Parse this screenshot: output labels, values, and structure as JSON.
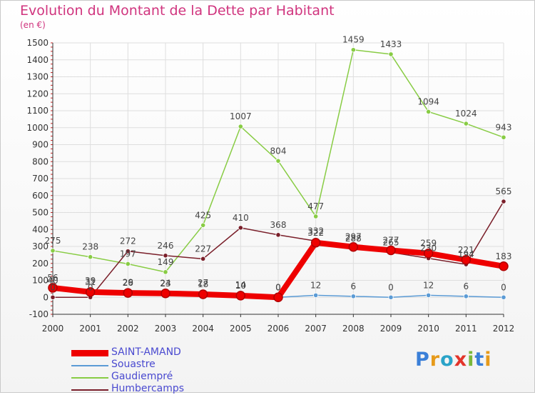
{
  "title": "Evolution du Montant de la Dette par Habitant",
  "unit": "(en €)",
  "logo": "Proxiti",
  "chart_data": {
    "type": "line",
    "x": [
      "2000",
      "2001",
      "2002",
      "2003",
      "2004",
      "2005",
      "2006",
      "2007",
      "2008",
      "2009",
      "2010",
      "2011",
      "2012"
    ],
    "ylim": [
      -100,
      1500
    ],
    "yticks": [
      -100,
      0,
      100,
      200,
      300,
      400,
      500,
      600,
      700,
      800,
      900,
      1000,
      1100,
      1200,
      1300,
      1400,
      1500
    ],
    "series": [
      {
        "name": "SAINT-AMAND",
        "color": "#ee0000",
        "values": [
          56,
          31,
          26,
          23,
          18,
          10,
          0,
          322,
          297,
          277,
          259,
          221,
          183
        ],
        "labels": [
          "56",
          "31",
          "26",
          "23",
          "18",
          "10",
          "0",
          "322",
          "297",
          "277",
          "259",
          "221",
          "183"
        ]
      },
      {
        "name": "Souastre",
        "color": "#5b9bd5",
        "values": [
          40,
          39,
          29,
          24,
          27,
          14,
          0,
          12,
          6,
          0,
          12,
          6,
          0
        ],
        "labels": [
          "40",
          "39",
          "29",
          "24",
          "27",
          "14",
          "0",
          "12",
          "6",
          "0",
          "12",
          "6",
          "0"
        ]
      },
      {
        "name": "Gaudiempré",
        "color": "#88cc44",
        "values": [
          275,
          238,
          197,
          149,
          425,
          1007,
          804,
          477,
          1459,
          1433,
          1094,
          1024,
          943
        ],
        "labels": [
          "275",
          "238",
          "197",
          "149",
          "425",
          "1007",
          "804",
          "477",
          "1459",
          "1433",
          "1094",
          "1024",
          "943"
        ]
      },
      {
        "name": "Humbercamps",
        "color": "#7a1f2a",
        "values": [
          0,
          0,
          272,
          246,
          227,
          410,
          368,
          332,
          288,
          265,
          230,
          194,
          565
        ],
        "labels": [
          "0",
          "0",
          "272",
          "246",
          "227",
          "410",
          "368",
          "332",
          "288",
          "265",
          "230",
          "194",
          "565"
        ]
      }
    ]
  }
}
